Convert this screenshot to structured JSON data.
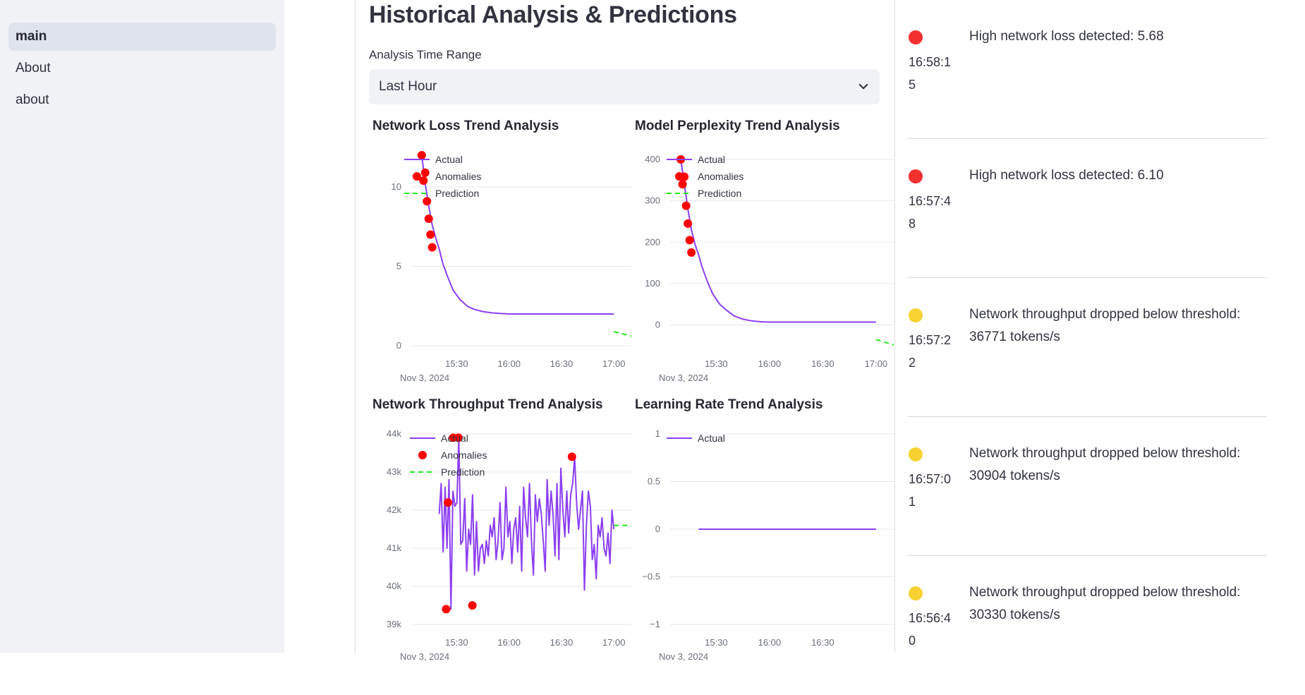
{
  "sidebar": {
    "items": [
      {
        "label": "main",
        "active": true
      },
      {
        "label": "About",
        "active": false
      },
      {
        "label": "about",
        "active": false
      }
    ]
  },
  "main": {
    "title": "Historical Analysis & Predictions",
    "time_range_label": "Analysis Time Range",
    "time_range_value": "Last Hour"
  },
  "charts": {
    "loss": {
      "title": "Network Loss Trend Analysis"
    },
    "perplexity": {
      "title": "Model Perplexity Trend Analysis"
    },
    "throughput": {
      "title": "Network Throughput Trend Analysis"
    },
    "lr": {
      "title": "Learning Rate Trend Analysis"
    }
  },
  "legend": {
    "actual": "Actual",
    "anomalies": "Anomalies",
    "prediction": "Prediction"
  },
  "colors": {
    "actual": "#8c3ff0",
    "anomaly": "#ff0000",
    "prediction": "#22e81a",
    "critical": "#f23030",
    "warning": "#f7d232"
  },
  "chart_data": [
    {
      "type": "line",
      "title": "Network Loss Trend Analysis",
      "x_ticks": [
        "15:30",
        "16:00",
        "16:30",
        "17:00"
      ],
      "x_date": "Nov 3, 2024",
      "y_ticks": [
        0,
        5,
        10
      ],
      "ylim": [
        0,
        12
      ],
      "series": [
        {
          "name": "Actual",
          "x": [
            "15:10",
            "15:12",
            "15:14",
            "15:16",
            "15:18",
            "15:20",
            "15:22",
            "15:25",
            "15:28",
            "15:32",
            "15:36",
            "15:40",
            "15:45",
            "15:50",
            "15:55",
            "16:00",
            "16:20",
            "16:40",
            "17:00"
          ],
          "y": [
            12,
            10.2,
            8.8,
            7.6,
            6.8,
            6.1,
            5.2,
            4.3,
            3.5,
            2.9,
            2.5,
            2.3,
            2.15,
            2.07,
            2.03,
            2.0,
            2.0,
            2.0,
            2.0
          ]
        },
        {
          "name": "Anomalies",
          "x": [
            "15:10",
            "15:12",
            "15:11",
            "15:13",
            "15:14",
            "15:15",
            "15:16"
          ],
          "y": [
            12,
            10.9,
            10.4,
            9.1,
            8.0,
            7.0,
            6.2
          ]
        },
        {
          "name": "Prediction",
          "x": [
            "17:00",
            "17:10"
          ],
          "y": [
            0.9,
            0.6
          ]
        }
      ],
      "legend": "top-left",
      "grid": true
    },
    {
      "type": "line",
      "title": "Model Perplexity Trend Analysis",
      "x_ticks": [
        "15:30",
        "16:00",
        "16:30",
        "17:00"
      ],
      "x_date": "Nov 3, 2024",
      "y_ticks": [
        0,
        100,
        200,
        300,
        400
      ],
      "ylim": [
        -50,
        410
      ],
      "series": [
        {
          "name": "Actual",
          "x": [
            "15:10",
            "15:12",
            "15:14",
            "15:16",
            "15:18",
            "15:20",
            "15:22",
            "15:25",
            "15:28",
            "15:32",
            "15:36",
            "15:40",
            "15:45",
            "15:50",
            "15:55",
            "16:00",
            "16:20",
            "16:40",
            "17:00"
          ],
          "y": [
            400,
            340,
            280,
            230,
            195,
            170,
            140,
            105,
            75,
            50,
            35,
            22,
            14,
            10,
            8,
            7,
            7,
            7,
            7
          ]
        },
        {
          "name": "Anomalies",
          "x": [
            "15:10",
            "15:12",
            "15:11",
            "15:13",
            "15:14",
            "15:15",
            "15:16"
          ],
          "y": [
            400,
            358,
            340,
            288,
            245,
            205,
            175
          ]
        },
        {
          "name": "Prediction",
          "x": [
            "17:00",
            "17:10"
          ],
          "y": [
            -35,
            -48
          ]
        }
      ],
      "legend": "top-left",
      "grid": true
    },
    {
      "type": "line",
      "title": "Network Throughput Trend Analysis",
      "x_ticks": [
        "15:30",
        "16:00",
        "16:30",
        "17:00"
      ],
      "x_date": "Nov 3, 2024",
      "y_ticks": [
        "39k",
        "40k",
        "41k",
        "42k",
        "43k",
        "44k"
      ],
      "ylim": [
        39000,
        44000
      ],
      "series": [
        {
          "name": "Actual",
          "y": [
            41900,
            42700,
            40900,
            42600,
            41000,
            42800,
            39400,
            42500,
            42100,
            42200,
            43900,
            41100,
            41200,
            42300,
            40400,
            41500,
            41100,
            42400,
            40300,
            41700,
            40400,
            41000,
            41100,
            40600,
            41200,
            40800,
            41600,
            41300,
            41800,
            40700,
            41200,
            42200,
            40700,
            41000,
            42600,
            41300,
            41700,
            40600,
            41500,
            41800,
            40900,
            42100,
            40400,
            42600,
            41800,
            41300,
            42700,
            41200,
            40300,
            42400,
            41700,
            42300,
            41900,
            41200,
            40400,
            42800,
            41600,
            42500,
            41900,
            40800,
            42700,
            40700,
            43100,
            42000,
            41300,
            42500,
            41400,
            42400,
            42700,
            43400,
            42200,
            41500,
            42000,
            42500,
            39900,
            41600,
            42500,
            42100,
            40700,
            41100,
            40200,
            41600,
            41300,
            41800,
            41000,
            40800,
            41400,
            40600,
            42000,
            41500
          ],
          "x_start": "15:20",
          "x_end": "17:00"
        },
        {
          "name": "Anomalies",
          "x": [
            "15:24",
            "15:25",
            "15:28",
            "15:31",
            "15:39",
            "16:36"
          ],
          "y": [
            39400,
            42200,
            43900,
            43900,
            39500,
            43400
          ]
        },
        {
          "name": "Prediction",
          "x": [
            "17:00",
            "17:10"
          ],
          "y": [
            41600,
            41600
          ]
        }
      ],
      "legend": "top-left",
      "grid": true
    },
    {
      "type": "line",
      "title": "Learning Rate Trend Analysis",
      "x_ticks": [
        "15:30",
        "16:00",
        "16:30"
      ],
      "x_date": "Nov 3, 2024",
      "y_ticks": [
        "−1",
        "−0.5",
        "0",
        "0.5",
        "1"
      ],
      "ylim": [
        -1,
        1
      ],
      "series": [
        {
          "name": "Actual",
          "x": [
            "15:20",
            "17:00"
          ],
          "y": [
            0,
            0
          ]
        }
      ],
      "legend": "top-left",
      "grid": true
    }
  ],
  "alerts": [
    {
      "time": "16:58:15",
      "message": "High network loss detected: 5.68",
      "level": "critical"
    },
    {
      "time": "16:57:48",
      "message": "High network loss detected: 6.10",
      "level": "critical"
    },
    {
      "time": "16:57:22",
      "message": "Network throughput dropped below threshold: 36771 tokens/s",
      "level": "warning"
    },
    {
      "time": "16:57:01",
      "message": "Network throughput dropped below threshold: 30904 tokens/s",
      "level": "warning"
    },
    {
      "time": "16:56:40",
      "message": "Network throughput dropped below threshold: 30330 tokens/s",
      "level": "warning"
    }
  ]
}
